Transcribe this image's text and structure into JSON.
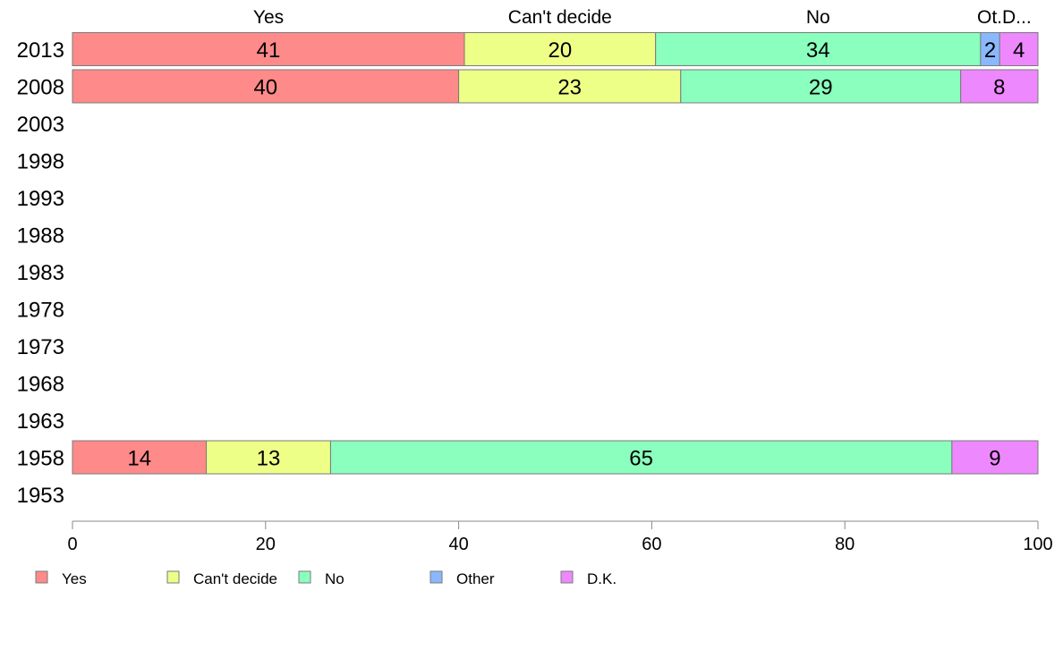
{
  "chart_data": {
    "type": "bar",
    "orientation": "horizontal",
    "stacked": true,
    "categories": [
      "2013",
      "2008",
      "2003",
      "1998",
      "1993",
      "1988",
      "1983",
      "1978",
      "1973",
      "1968",
      "1963",
      "1958",
      "1953"
    ],
    "series": [
      {
        "name": "Yes",
        "color": "#FF8A8A",
        "values": [
          41,
          40,
          null,
          null,
          null,
          null,
          null,
          null,
          null,
          null,
          null,
          14,
          null
        ]
      },
      {
        "name": "Can't decide",
        "color": "#EEFF88",
        "values": [
          20,
          23,
          null,
          null,
          null,
          null,
          null,
          null,
          null,
          null,
          null,
          13,
          null
        ]
      },
      {
        "name": "No",
        "color": "#8AFFBE",
        "values": [
          34,
          29,
          null,
          null,
          null,
          null,
          null,
          null,
          null,
          null,
          null,
          65,
          null
        ]
      },
      {
        "name": "Other",
        "color": "#8AB8FF",
        "values": [
          2,
          0,
          null,
          null,
          null,
          null,
          null,
          null,
          null,
          null,
          null,
          0,
          null
        ]
      },
      {
        "name": "D.K.",
        "color": "#EE88FF",
        "values": [
          4,
          8,
          null,
          null,
          null,
          null,
          null,
          null,
          null,
          null,
          null,
          9,
          null
        ]
      }
    ],
    "top_labels": [
      "Yes",
      "Can't decide",
      "No",
      "Ot.",
      "D..."
    ],
    "xlim": [
      0,
      100
    ],
    "x_ticks": [
      0,
      20,
      40,
      60,
      80,
      100
    ],
    "title": "",
    "xlabel": "",
    "ylabel": "",
    "grid": false,
    "legend": "bottom-left"
  }
}
